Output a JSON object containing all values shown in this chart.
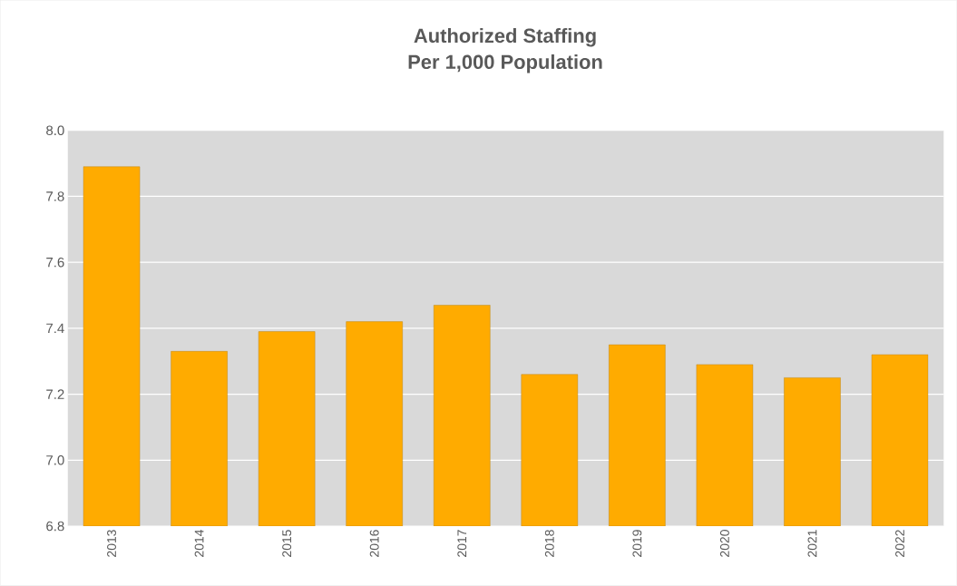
{
  "chart_data": {
    "type": "bar",
    "title": "Authorized Staffing\nPer 1,000 Population",
    "categories": [
      "2013",
      "2014",
      "2015",
      "2016",
      "2017",
      "2018",
      "2019",
      "2020",
      "2021",
      "2022"
    ],
    "values": [
      7.89,
      7.33,
      7.39,
      7.42,
      7.47,
      7.26,
      7.35,
      7.29,
      7.25,
      7.32
    ],
    "color": "#ffab00",
    "ylim": [
      6.8,
      8.0
    ],
    "yticks": [
      {
        "value": 6.8,
        "label": "6.8"
      },
      {
        "value": 7.0,
        "label": "7.0"
      },
      {
        "value": 7.2,
        "label": "7.2"
      },
      {
        "value": 7.4,
        "label": "7.4"
      },
      {
        "value": 7.6,
        "label": "7.6"
      },
      {
        "value": 7.8,
        "label": "7.8"
      },
      {
        "value": 8.0,
        "label": "8.0"
      }
    ],
    "grid": "y"
  }
}
